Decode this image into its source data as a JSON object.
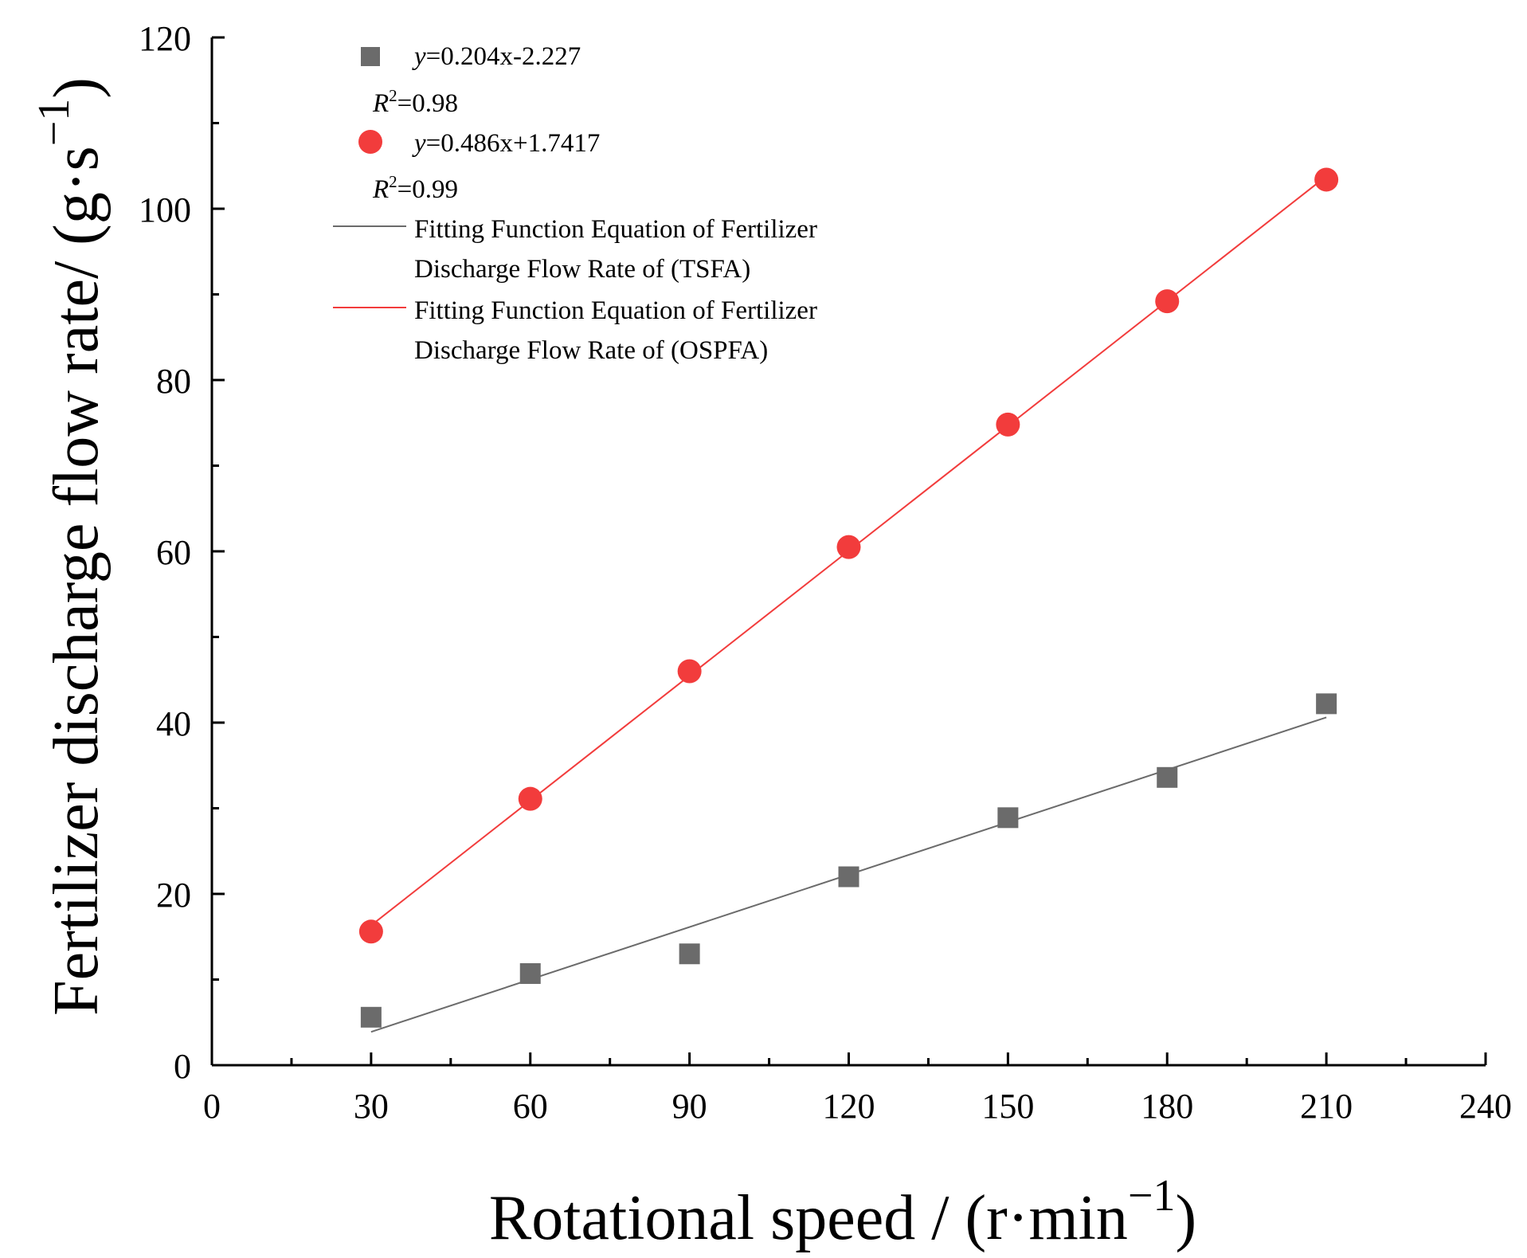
{
  "chart_data": {
    "type": "scatter",
    "title": "",
    "xlabel": "Rotational speed / (r·min",
    "xlabel_sup": "−1",
    "xlabel_close": ")",
    "ylabel": "Fertilizer discharge flow rate/ (g·s",
    "ylabel_sup": "−1",
    "ylabel_close": ")",
    "xlim": [
      0,
      240
    ],
    "ylim": [
      0,
      120
    ],
    "x_ticks": [
      0,
      30,
      60,
      90,
      120,
      150,
      180,
      210,
      240
    ],
    "x_tick_labels": [
      "0",
      "30",
      "60",
      "90",
      "120",
      "150",
      "180",
      "210",
      "240"
    ],
    "y_ticks": [
      0,
      20,
      40,
      60,
      80,
      100,
      120
    ],
    "y_tick_labels": [
      "0",
      "20",
      "40",
      "60",
      "80",
      "100",
      "120"
    ],
    "grid": false,
    "legend_position": "top-left",
    "series": [
      {
        "name": "TSFA",
        "marker": "square",
        "color": "#6b6b6b",
        "x": [
          30,
          60,
          90,
          120,
          150,
          180,
          210
        ],
        "y": [
          5.6,
          10.7,
          13.0,
          22.0,
          28.9,
          33.6,
          42.2
        ],
        "equation_var": "y",
        "equation_rest": "=0.204x-2.227",
        "r2_var": "R",
        "r2_exp": "2",
        "r2_rest": "=0.98"
      },
      {
        "name": "OSPFA",
        "marker": "circle",
        "color": "#f23c3c",
        "x": [
          30,
          60,
          90,
          120,
          150,
          180,
          210
        ],
        "y": [
          15.6,
          31.1,
          46.0,
          60.5,
          74.8,
          89.2,
          103.4
        ],
        "equation_var": "y",
        "equation_rest": "=0.486x+1.7417",
        "r2_var": "R",
        "r2_exp": "2",
        "r2_rest": "=0.99"
      }
    ],
    "fit_lines": [
      {
        "name": "Fitting Function Equation of Fertilizer Discharge Flow Rate of (TSFA)",
        "legend_line1": "Fitting Function Equation of Fertilizer",
        "legend_line2": "Discharge Flow Rate of (TSFA)",
        "color": "#6b6b6b",
        "slope": 0.204,
        "intercept": -2.227,
        "x_range": [
          30,
          210
        ]
      },
      {
        "name": "Fitting Function Equation of Fertilizer Discharge Flow Rate of (OSPFA)",
        "legend_line1": "Fitting Function Equation of Fertilizer",
        "legend_line2": "Discharge Flow Rate of (OSPFA)",
        "color": "#f23c3c",
        "slope": 0.486,
        "intercept": 1.7417,
        "x_range": [
          30,
          210
        ]
      }
    ]
  }
}
